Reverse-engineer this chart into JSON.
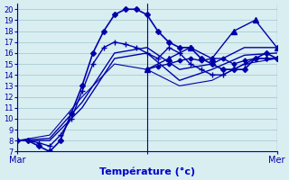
{
  "bg_color": "#d8eef0",
  "grid_color": "#a0c4cc",
  "line_color": "#0000aa",
  "xlabel": "Température (°c)",
  "xlabel_color": "#0000cc",
  "ylim": [
    7,
    20.5
  ],
  "xlim": [
    0,
    48
  ],
  "yticks": [
    7,
    8,
    9,
    10,
    11,
    12,
    13,
    14,
    15,
    16,
    17,
    18,
    19,
    20
  ],
  "vlines": [
    0,
    24,
    48
  ],
  "vline_labels": [
    "Mar",
    "Mer"
  ],
  "series": [
    {
      "x": [
        0,
        2,
        4,
        6,
        8,
        10,
        12,
        14,
        16,
        18,
        20,
        22,
        24,
        26,
        28,
        30,
        32,
        34,
        36,
        38,
        40,
        42,
        44,
        46,
        48
      ],
      "y": [
        8.0,
        8.0,
        7.5,
        7.0,
        8.0,
        10.5,
        13.0,
        16.0,
        18.0,
        19.5,
        20.0,
        20.0,
        19.5,
        18.0,
        17.0,
        16.5,
        16.5,
        15.5,
        15.0,
        14.5,
        14.5,
        14.5,
        15.5,
        16.0,
        15.5
      ],
      "marker": "D",
      "markersize": 3,
      "linewidth": 1.2
    },
    {
      "x": [
        0,
        2,
        4,
        6,
        8,
        10,
        12,
        14,
        16,
        18,
        20,
        22,
        24,
        26,
        28,
        30,
        32,
        34,
        36,
        38,
        40,
        42,
        44,
        46,
        48
      ],
      "y": [
        8.0,
        8.0,
        7.8,
        7.5,
        8.5,
        10.0,
        12.5,
        15.0,
        16.5,
        17.0,
        16.8,
        16.5,
        16.0,
        15.5,
        16.5,
        16.0,
        15.0,
        14.5,
        14.0,
        14.0,
        14.5,
        15.0,
        15.5,
        15.5,
        15.5
      ],
      "marker": "+",
      "markersize": 4,
      "linewidth": 1.0
    },
    {
      "x": [
        0,
        6,
        12,
        18,
        24,
        30,
        36,
        42,
        48
      ],
      "y": [
        8.0,
        8.0,
        11.0,
        15.5,
        16.0,
        13.5,
        14.5,
        15.8,
        16.0
      ],
      "marker": null,
      "markersize": 0,
      "linewidth": 1.0
    },
    {
      "x": [
        0,
        6,
        12,
        18,
        24,
        30,
        36,
        42,
        48
      ],
      "y": [
        8.0,
        8.2,
        11.5,
        16.0,
        16.5,
        14.5,
        15.0,
        16.5,
        16.5
      ],
      "marker": null,
      "markersize": 0,
      "linewidth": 1.0
    },
    {
      "x": [
        0,
        6,
        12,
        18,
        24,
        30,
        36,
        42,
        48
      ],
      "y": [
        8.0,
        8.5,
        12.0,
        15.0,
        14.5,
        13.0,
        13.5,
        15.0,
        15.5
      ],
      "marker": null,
      "markersize": 0,
      "linewidth": 0.8
    },
    {
      "x": [
        24,
        26,
        28,
        30,
        32,
        34,
        36,
        38,
        40,
        42,
        44,
        46,
        48
      ],
      "y": [
        14.5,
        14.8,
        15.0,
        15.3,
        15.5,
        15.3,
        15.5,
        15.5,
        15.0,
        15.3,
        15.5,
        15.5,
        15.5
      ],
      "marker": "D",
      "markersize": 2.5,
      "linewidth": 1.0
    },
    {
      "x": [
        24,
        28,
        32,
        36,
        40,
        44,
        48
      ],
      "y": [
        14.5,
        15.5,
        16.5,
        15.5,
        18.0,
        19.0,
        16.5
      ],
      "marker": "^",
      "markersize": 4,
      "linewidth": 1.0
    }
  ]
}
